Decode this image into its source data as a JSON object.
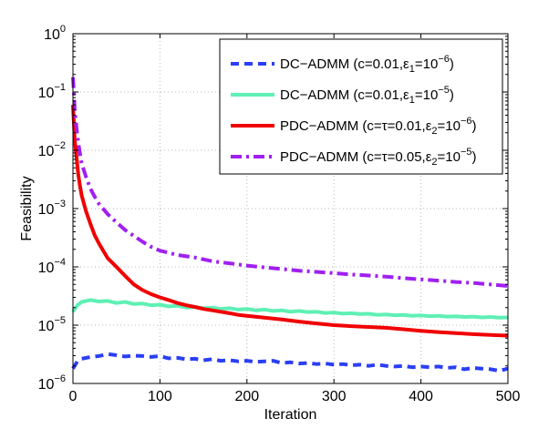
{
  "chart_data": {
    "type": "line",
    "yscale": "log",
    "xlabel": "Iteration",
    "ylabel": "Feasibility",
    "xlim": [
      0,
      500
    ],
    "ylim": [
      1e-06,
      1
    ],
    "grid": true,
    "legend_position": "top-right",
    "x_ticks": [
      {
        "value": 0,
        "label": "0"
      },
      {
        "value": 100,
        "label": "100"
      },
      {
        "value": 200,
        "label": "200"
      },
      {
        "value": 300,
        "label": "300"
      },
      {
        "value": 400,
        "label": "400"
      },
      {
        "value": 500,
        "label": "500"
      }
    ],
    "y_ticks": [
      {
        "value": 1e-06,
        "base": "10",
        "exp": "−6"
      },
      {
        "value": 1e-05,
        "base": "10",
        "exp": "−5"
      },
      {
        "value": 0.0001,
        "base": "10",
        "exp": "−4"
      },
      {
        "value": 0.001,
        "base": "10",
        "exp": "−3"
      },
      {
        "value": 0.01,
        "base": "10",
        "exp": "−2"
      },
      {
        "value": 0.1,
        "base": "10",
        "exp": "−1"
      },
      {
        "value": 1,
        "base": "10",
        "exp": "0"
      }
    ],
    "series": [
      {
        "name": "DC-ADMM (c=0.01, ε1=1e-6)",
        "legend": {
          "pre": "DC−ADMM (c=0.01,ε",
          "sub": "1",
          "mid": "=10",
          "sup": "−6",
          "post": ")"
        },
        "color": "#2a3ff5",
        "style": "dashed",
        "x": [
          0,
          5,
          10,
          20,
          30,
          40,
          50,
          60,
          70,
          80,
          90,
          100,
          110,
          120,
          130,
          140,
          150,
          160,
          170,
          180,
          190,
          200,
          210,
          220,
          230,
          240,
          250,
          260,
          270,
          280,
          290,
          300,
          310,
          320,
          330,
          340,
          350,
          360,
          370,
          380,
          390,
          400,
          410,
          420,
          430,
          440,
          450,
          460,
          470,
          480,
          490,
          500
        ],
        "y": [
          1.8e-06,
          2.4e-06,
          2.65e-06,
          2.85e-06,
          2.95e-06,
          3.2e-06,
          3.05e-06,
          2.9e-06,
          3e-06,
          2.95e-06,
          2.85e-06,
          2.95e-06,
          2.7e-06,
          2.75e-06,
          2.6e-06,
          2.65e-06,
          2.5e-06,
          2.6e-06,
          2.45e-06,
          2.5e-06,
          2.4e-06,
          2.45e-06,
          2.35e-06,
          2.4e-06,
          2.45e-06,
          2.25e-06,
          2.3e-06,
          2.2e-06,
          2.25e-06,
          2.15e-06,
          2.2e-06,
          2.1e-06,
          2.15e-06,
          2.05e-06,
          2.1e-06,
          2e-06,
          2.1e-06,
          2e-06,
          1.95e-06,
          2e-06,
          1.9e-06,
          1.95e-06,
          1.9e-06,
          1.95e-06,
          1.85e-06,
          1.9e-06,
          1.75e-06,
          1.85e-06,
          1.8e-06,
          1.75e-06,
          1.65e-06,
          1.8e-06
        ]
      },
      {
        "name": "DC-ADMM (c=0.01, ε1=1e-5)",
        "legend": {
          "pre": "DC−ADMM (c=0.01,ε",
          "sub": "1",
          "mid": "=10",
          "sup": "−5",
          "post": ")"
        },
        "color": "#5ef0b4",
        "style": "solid",
        "x": [
          0,
          5,
          10,
          20,
          30,
          40,
          50,
          60,
          70,
          80,
          90,
          100,
          110,
          120,
          130,
          140,
          150,
          160,
          170,
          180,
          190,
          200,
          210,
          220,
          230,
          240,
          250,
          260,
          270,
          280,
          290,
          300,
          310,
          320,
          330,
          340,
          350,
          360,
          370,
          380,
          390,
          400,
          410,
          420,
          430,
          440,
          450,
          460,
          470,
          480,
          490,
          500
        ],
        "y": [
          1.7e-05,
          2.2e-05,
          2.5e-05,
          2.7e-05,
          2.55e-05,
          2.6e-05,
          2.4e-05,
          2.5e-05,
          2.3e-05,
          2.35e-05,
          2.2e-05,
          2.25e-05,
          2.1e-05,
          2.15e-05,
          2e-05,
          2.05e-05,
          1.95e-05,
          2e-05,
          1.9e-05,
          1.95e-05,
          1.85e-05,
          1.9e-05,
          1.8e-05,
          1.85e-05,
          1.75e-05,
          1.8e-05,
          1.7e-05,
          1.75e-05,
          1.68e-05,
          1.7e-05,
          1.62e-05,
          1.65e-05,
          1.58e-05,
          1.6e-05,
          1.55e-05,
          1.57e-05,
          1.5e-05,
          1.53e-05,
          1.48e-05,
          1.5e-05,
          1.45e-05,
          1.47e-05,
          1.43e-05,
          1.45e-05,
          1.4e-05,
          1.42e-05,
          1.38e-05,
          1.4e-05,
          1.36e-05,
          1.38e-05,
          1.35e-05,
          1.36e-05
        ]
      },
      {
        "name": "PDC-ADMM (c=τ=0.01, ε2=1e-6)",
        "legend": {
          "pre": "PDC−ADMM (c=τ=0.01,ε",
          "sub": "2",
          "mid": "=10",
          "sup": "−6",
          "post": ")"
        },
        "color": "#f00000",
        "style": "solid",
        "x": [
          0,
          1,
          2,
          4,
          6,
          8,
          10,
          15,
          20,
          25,
          30,
          40,
          50,
          60,
          70,
          80,
          90,
          100,
          110,
          120,
          130,
          140,
          150,
          160,
          170,
          180,
          190,
          200,
          220,
          240,
          260,
          280,
          300,
          320,
          340,
          360,
          380,
          400,
          420,
          440,
          460,
          480,
          500
        ],
        "y": [
          0.06,
          0.03,
          0.015,
          0.008,
          0.004,
          0.0025,
          0.0017,
          0.0009,
          0.00055,
          0.00035,
          0.00025,
          0.00014,
          0.0001,
          7e-05,
          5e-05,
          4e-05,
          3.4e-05,
          3e-05,
          2.7e-05,
          2.4e-05,
          2.2e-05,
          2.05e-05,
          1.9e-05,
          1.8e-05,
          1.7e-05,
          1.6e-05,
          1.5e-05,
          1.45e-05,
          1.35e-05,
          1.25e-05,
          1.15e-05,
          1.07e-05,
          1e-05,
          9.6e-06,
          9.3e-06,
          9e-06,
          8.5e-06,
          8e-06,
          7.6e-06,
          7.3e-06,
          7e-06,
          6.8e-06,
          6.6e-06
        ]
      },
      {
        "name": "PDC-ADMM (c=τ=0.05, ε2=1e-5)",
        "legend": {
          "pre": "PDC−ADMM (c=τ=0.05,ε",
          "sub": "2",
          "mid": "=10",
          "sup": "−5",
          "post": ")"
        },
        "color": "#a020f0",
        "style": "dashdot",
        "x": [
          0,
          1,
          2,
          4,
          6,
          8,
          10,
          15,
          20,
          25,
          30,
          40,
          50,
          60,
          70,
          80,
          90,
          100,
          120,
          140,
          160,
          180,
          200,
          220,
          240,
          260,
          280,
          300,
          320,
          340,
          360,
          380,
          400,
          420,
          440,
          460,
          480,
          500
        ],
        "y": [
          0.18,
          0.1,
          0.05,
          0.025,
          0.014,
          0.009,
          0.006,
          0.0035,
          0.0022,
          0.0016,
          0.0012,
          0.0008,
          0.00058,
          0.00043,
          0.00034,
          0.00027,
          0.00022,
          0.00019,
          0.00016,
          0.000145,
          0.000125,
          0.000115,
          0.000105,
          9.8e-05,
          9.2e-05,
          8.6e-05,
          8.2e-05,
          7.8e-05,
          7.4e-05,
          7.1e-05,
          6.8e-05,
          6.4e-05,
          6.1e-05,
          5.8e-05,
          5.5e-05,
          5.3e-05,
          5e-05,
          4.7e-05
        ]
      }
    ]
  }
}
